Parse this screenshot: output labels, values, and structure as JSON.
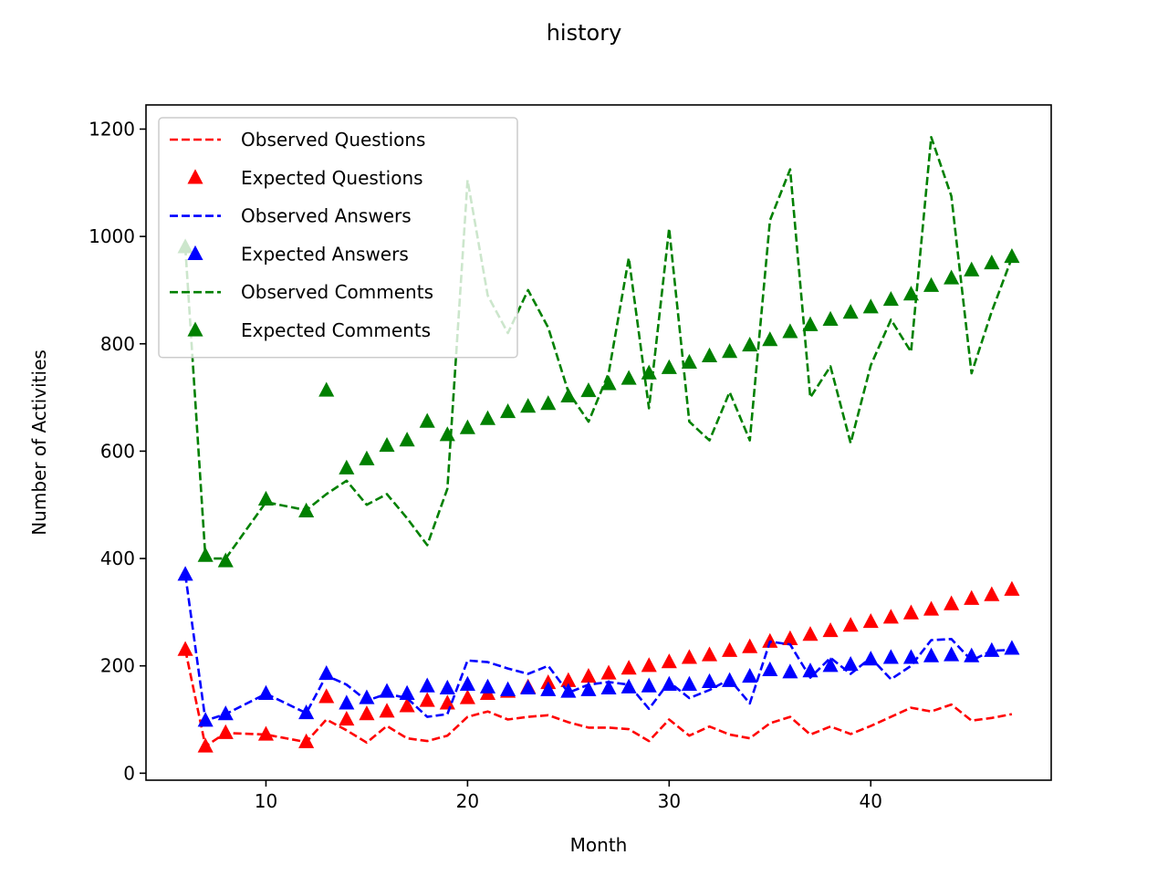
{
  "chart_data": {
    "type": "line",
    "title": "history",
    "xlabel": "Month",
    "ylabel": "Number of Activities",
    "xlim": [
      4.05,
      48.95
    ],
    "ylim": [
      -13,
      1245
    ],
    "xticks": [
      10,
      20,
      30,
      40
    ],
    "yticks": [
      0,
      200,
      400,
      600,
      800,
      1000,
      1200
    ],
    "x": [
      6,
      7,
      8,
      10,
      12,
      13,
      14,
      15,
      16,
      17,
      18,
      19,
      20,
      21,
      22,
      23,
      24,
      25,
      26,
      27,
      28,
      29,
      30,
      31,
      32,
      33,
      34,
      35,
      36,
      37,
      38,
      39,
      40,
      41,
      42,
      43,
      44,
      45,
      46,
      47
    ],
    "legend_position": "upper-left",
    "grid": false,
    "series": [
      {
        "name": "Observed Questions",
        "style": "dashed",
        "color": "#ff0000",
        "values": [
          230,
          50,
          75,
          72,
          58,
          100,
          80,
          57,
          88,
          65,
          60,
          70,
          105,
          115,
          100,
          105,
          108,
          95,
          85,
          85,
          82,
          60,
          100,
          70,
          87,
          72,
          65,
          93,
          105,
          72,
          87,
          73,
          88,
          105,
          122,
          115,
          128,
          98,
          103,
          110
        ]
      },
      {
        "name": "Expected Questions",
        "style": "triangle",
        "color": "#ff0000",
        "values": [
          230,
          50,
          75,
          72,
          58,
          142,
          100,
          110,
          115,
          125,
          135,
          130,
          140,
          148,
          152,
          160,
          168,
          172,
          180,
          186,
          195,
          200,
          207,
          215,
          220,
          228,
          235,
          245,
          250,
          258,
          265,
          275,
          282,
          290,
          298,
          305,
          315,
          325,
          332,
          342
        ]
      },
      {
        "name": "Observed Answers",
        "style": "dashed",
        "color": "#0000ff",
        "values": [
          370,
          98,
          110,
          148,
          112,
          182,
          165,
          135,
          148,
          140,
          105,
          110,
          210,
          207,
          195,
          185,
          200,
          150,
          165,
          170,
          165,
          120,
          170,
          140,
          155,
          175,
          130,
          245,
          240,
          178,
          215,
          185,
          215,
          175,
          200,
          248,
          250,
          210,
          228,
          230
        ]
      },
      {
        "name": "Expected Answers",
        "style": "triangle",
        "color": "#0000ff",
        "values": [
          370,
          98,
          110,
          148,
          112,
          185,
          130,
          140,
          152,
          148,
          162,
          158,
          165,
          160,
          155,
          158,
          155,
          152,
          155,
          158,
          160,
          162,
          165,
          165,
          170,
          172,
          180,
          192,
          188,
          190,
          200,
          202,
          212,
          215,
          215,
          218,
          220,
          218,
          228,
          232
        ]
      },
      {
        "name": "Observed Comments",
        "style": "dashed",
        "color": "#008000",
        "values": [
          980,
          400,
          400,
          505,
          490,
          520,
          545,
          500,
          520,
          475,
          425,
          530,
          1105,
          890,
          820,
          900,
          830,
          710,
          655,
          745,
          960,
          680,
          1015,
          655,
          620,
          710,
          620,
          1030,
          1125,
          700,
          758,
          615,
          760,
          845,
          785,
          1185,
          1075,
          745,
          860,
          960
        ]
      },
      {
        "name": "Expected Comments",
        "style": "triangle",
        "color": "#008000",
        "values": [
          980,
          405,
          395,
          510,
          488,
          713,
          568,
          585,
          610,
          620,
          655,
          630,
          643,
          660,
          673,
          683,
          688,
          702,
          712,
          725,
          735,
          745,
          755,
          765,
          777,
          785,
          797,
          807,
          822,
          835,
          845,
          858,
          868,
          882,
          892,
          908,
          922,
          937,
          950,
          962
        ]
      }
    ]
  }
}
